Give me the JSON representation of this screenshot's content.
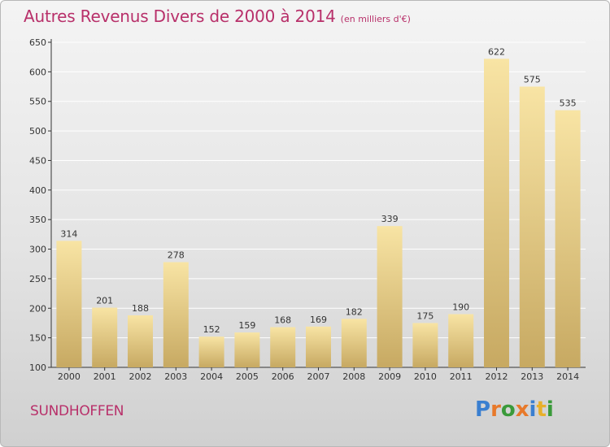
{
  "title": "Autres Revenus Divers de 2000 à 2014",
  "subtitle": "(en milliers d'€)",
  "place": "SUNDHOFFEN",
  "logo": "Proxiti",
  "colors": {
    "title": "#b8306a",
    "bar_light": "#f7e2a0",
    "bar_dark": "#c8aa63",
    "grid": "#ffffff",
    "axis": "#333333"
  },
  "chart_data": {
    "type": "bar",
    "title": "Autres Revenus Divers de 2000 à 2014",
    "subtitle": "(en milliers d'€)",
    "categories": [
      "2000",
      "2001",
      "2002",
      "2003",
      "2004",
      "2005",
      "2006",
      "2007",
      "2008",
      "2009",
      "2010",
      "2011",
      "2012",
      "2013",
      "2014"
    ],
    "values": [
      314,
      201,
      188,
      278,
      152,
      159,
      168,
      169,
      182,
      339,
      175,
      190,
      622,
      575,
      535
    ],
    "ylim": [
      100,
      650
    ],
    "yticks": [
      100,
      150,
      200,
      250,
      300,
      350,
      400,
      450,
      500,
      550,
      600,
      650
    ],
    "grid": true,
    "data_labels": true
  }
}
